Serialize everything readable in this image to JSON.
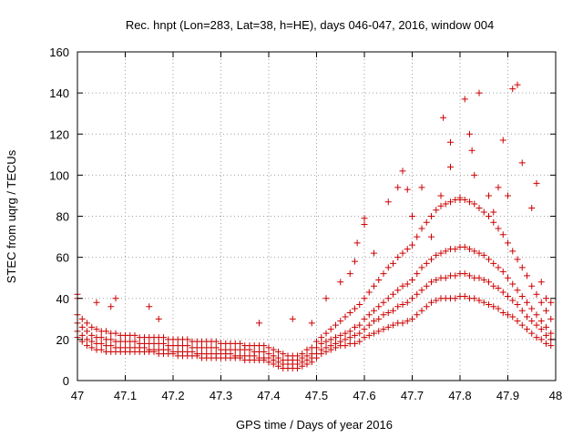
{
  "chart_data": {
    "type": "scatter",
    "title": "Rec. hnpt (Lon=283, Lat=38, h=HE), days 046-047, 2016, window 004",
    "xlabel": "GPS time / Days of year 2016",
    "ylabel": "STEC from uqrg / TECUs",
    "xlim": [
      47,
      48
    ],
    "ylim": [
      0,
      160
    ],
    "xticks": [
      47,
      47.1,
      47.2,
      47.3,
      47.4,
      47.5,
      47.6,
      47.7,
      47.8,
      47.9,
      48
    ],
    "xtick_labels": [
      "47",
      "47.1",
      "47.2",
      "47.3",
      "47.4",
      "47.5",
      "47.6",
      "47.7",
      "47.8",
      "47.9",
      "48"
    ],
    "yticks": [
      0,
      20,
      40,
      60,
      80,
      100,
      120,
      140,
      160
    ],
    "ytick_labels": [
      "0",
      "20",
      "40",
      "60",
      "80",
      "100",
      "120",
      "140",
      "160"
    ],
    "grid": true,
    "marker": "plus",
    "color": "#cc0000",
    "series": [
      {
        "x": [
          47.0,
          47.01,
          47.02,
          47.03,
          47.04,
          47.05,
          47.06,
          47.07,
          47.08,
          47.09,
          47.1,
          47.11,
          47.12,
          47.13,
          47.14,
          47.15,
          47.16,
          47.17,
          47.18,
          47.19,
          47.2,
          47.21,
          47.22,
          47.23,
          47.24,
          47.25,
          47.26,
          47.27,
          47.28,
          47.29,
          47.3,
          47.31,
          47.32,
          47.33,
          47.34,
          47.35,
          47.36,
          47.37,
          47.38,
          47.39,
          47.4,
          47.41,
          47.42,
          47.43,
          47.44,
          47.45,
          47.46,
          47.47,
          47.48,
          47.49,
          47.5,
          47.51,
          47.52,
          47.53,
          47.54,
          47.55,
          47.56,
          47.57,
          47.58,
          47.59,
          47.6,
          47.61,
          47.62,
          47.63,
          47.64,
          47.65,
          47.66,
          47.67,
          47.68,
          47.69,
          47.7,
          47.71,
          47.72,
          47.73,
          47.74,
          47.75,
          47.76,
          47.77,
          47.78,
          47.79,
          47.8,
          47.81,
          47.82,
          47.83,
          47.84,
          47.85,
          47.86,
          47.87,
          47.88,
          47.89,
          47.9,
          47.91,
          47.92,
          47.93,
          47.94,
          47.95,
          47.96,
          47.97,
          47.98,
          47.99
        ],
        "y": [
          21,
          19,
          17,
          16,
          15,
          15,
          14,
          14,
          14,
          14,
          14,
          14,
          14,
          14,
          14,
          14,
          14,
          13,
          13,
          13,
          13,
          12,
          12,
          12,
          12,
          12,
          11,
          11,
          11,
          11,
          11,
          11,
          11,
          11,
          11,
          10,
          10,
          10,
          10,
          10,
          9,
          8,
          7,
          6,
          6,
          6,
          6,
          7,
          8,
          9,
          11,
          13,
          14,
          15,
          16,
          17,
          17,
          18,
          18,
          19,
          21,
          22,
          23,
          24,
          25,
          26,
          27,
          28,
          28,
          29,
          30,
          32,
          34,
          36,
          38,
          39,
          40,
          40,
          40,
          40,
          41,
          41,
          40,
          40,
          39,
          38,
          37,
          36,
          35,
          33,
          32,
          31,
          29,
          27,
          25,
          23,
          21,
          20,
          18,
          17
        ]
      },
      {
        "x": [
          47.0,
          47.01,
          47.02,
          47.03,
          47.04,
          47.05,
          47.06,
          47.07,
          47.08,
          47.09,
          47.1,
          47.11,
          47.12,
          47.13,
          47.14,
          47.15,
          47.16,
          47.17,
          47.18,
          47.19,
          47.2,
          47.21,
          47.22,
          47.23,
          47.24,
          47.25,
          47.26,
          47.27,
          47.28,
          47.29,
          47.3,
          47.31,
          47.32,
          47.33,
          47.34,
          47.35,
          47.36,
          47.37,
          47.38,
          47.39,
          47.4,
          47.41,
          47.42,
          47.43,
          47.44,
          47.45,
          47.46,
          47.47,
          47.48,
          47.49,
          47.5,
          47.51,
          47.52,
          47.53,
          47.54,
          47.55,
          47.56,
          47.57,
          47.58,
          47.59,
          47.6,
          47.61,
          47.62,
          47.63,
          47.64,
          47.65,
          47.66,
          47.67,
          47.68,
          47.69,
          47.7,
          47.71,
          47.72,
          47.73,
          47.74,
          47.75,
          47.76,
          47.77,
          47.78,
          47.79,
          47.8,
          47.81,
          47.82,
          47.83,
          47.84,
          47.85,
          47.86,
          47.87,
          47.88,
          47.89,
          47.9,
          47.91,
          47.92,
          47.93,
          47.94,
          47.95,
          47.96,
          47.97,
          47.98,
          47.99
        ],
        "y": [
          24,
          22,
          20,
          19,
          18,
          18,
          17,
          17,
          16,
          16,
          16,
          16,
          16,
          16,
          16,
          15,
          15,
          15,
          15,
          15,
          14,
          14,
          14,
          14,
          14,
          13,
          13,
          13,
          13,
          13,
          13,
          13,
          13,
          12,
          12,
          12,
          12,
          12,
          11,
          11,
          11,
          10,
          9,
          8,
          8,
          8,
          8,
          9,
          10,
          11,
          13,
          15,
          16,
          17,
          18,
          19,
          20,
          21,
          22,
          23,
          25,
          27,
          29,
          30,
          32,
          33,
          34,
          36,
          37,
          38,
          40,
          42,
          44,
          46,
          48,
          49,
          50,
          50,
          51,
          51,
          52,
          52,
          51,
          50,
          50,
          49,
          48,
          46,
          45,
          43,
          41,
          39,
          37,
          34,
          31,
          29,
          27,
          25,
          22,
          20
        ]
      },
      {
        "x": [
          47.0,
          47.01,
          47.02,
          47.03,
          47.04,
          47.05,
          47.06,
          47.07,
          47.08,
          47.09,
          47.1,
          47.11,
          47.12,
          47.13,
          47.14,
          47.15,
          47.16,
          47.17,
          47.18,
          47.19,
          47.2,
          47.21,
          47.22,
          47.23,
          47.24,
          47.25,
          47.26,
          47.27,
          47.28,
          47.29,
          47.3,
          47.31,
          47.32,
          47.33,
          47.34,
          47.35,
          47.36,
          47.37,
          47.38,
          47.39,
          47.4,
          47.41,
          47.42,
          47.43,
          47.44,
          47.45,
          47.46,
          47.47,
          47.48,
          47.49,
          47.5,
          47.51,
          47.52,
          47.53,
          47.54,
          47.55,
          47.56,
          47.57,
          47.58,
          47.59,
          47.6,
          47.61,
          47.62,
          47.63,
          47.64,
          47.65,
          47.66,
          47.67,
          47.68,
          47.69,
          47.7,
          47.71,
          47.72,
          47.73,
          47.74,
          47.75,
          47.76,
          47.77,
          47.78,
          47.79,
          47.8,
          47.81,
          47.82,
          47.83,
          47.84,
          47.85,
          47.86,
          47.87,
          47.88,
          47.89,
          47.9,
          47.91,
          47.92,
          47.93,
          47.94,
          47.95,
          47.96,
          47.97,
          47.98,
          47.99
        ],
        "y": [
          28,
          26,
          24,
          22,
          21,
          21,
          20,
          20,
          19,
          19,
          19,
          19,
          19,
          18,
          18,
          18,
          18,
          18,
          18,
          17,
          17,
          17,
          17,
          17,
          16,
          16,
          16,
          16,
          16,
          16,
          15,
          15,
          15,
          15,
          15,
          15,
          15,
          14,
          14,
          14,
          13,
          12,
          11,
          10,
          10,
          10,
          10,
          11,
          12,
          13,
          16,
          18,
          19,
          20,
          21,
          22,
          23,
          24,
          26,
          27,
          30,
          32,
          34,
          36,
          38,
          40,
          42,
          44,
          46,
          47,
          49,
          52,
          55,
          57,
          59,
          61,
          62,
          63,
          64,
          64,
          65,
          65,
          64,
          63,
          62,
          61,
          59,
          57,
          55,
          53,
          50,
          47,
          44,
          41,
          38,
          35,
          32,
          29,
          26,
          23
        ]
      },
      {
        "x": [
          47.0,
          47.01,
          47.02,
          47.03,
          47.04,
          47.05,
          47.06,
          47.07,
          47.08,
          47.09,
          47.1,
          47.11,
          47.12,
          47.13,
          47.14,
          47.15,
          47.16,
          47.17,
          47.18,
          47.19,
          47.2,
          47.21,
          47.22,
          47.23,
          47.24,
          47.25,
          47.26,
          47.27,
          47.28,
          47.29,
          47.3,
          47.31,
          47.32,
          47.33,
          47.34,
          47.35,
          47.36,
          47.37,
          47.38,
          47.39,
          47.4,
          47.41,
          47.42,
          47.43,
          47.44,
          47.45,
          47.46,
          47.47,
          47.48,
          47.49,
          47.5,
          47.51,
          47.52,
          47.53,
          47.54,
          47.55,
          47.56,
          47.57,
          47.58,
          47.59,
          47.6,
          47.61,
          47.62,
          47.63,
          47.64,
          47.65,
          47.66,
          47.67,
          47.68,
          47.69,
          47.7,
          47.71,
          47.72,
          47.73,
          47.74,
          47.75,
          47.76,
          47.77,
          47.78,
          47.79,
          47.8,
          47.81,
          47.82,
          47.83,
          47.84,
          47.85,
          47.86,
          47.87,
          47.88,
          47.89,
          47.9,
          47.91,
          47.92,
          47.93,
          47.94,
          47.95,
          47.96,
          47.97,
          47.98,
          47.99
        ],
        "y": [
          32,
          30,
          28,
          26,
          25,
          24,
          24,
          23,
          23,
          22,
          22,
          22,
          22,
          21,
          21,
          21,
          21,
          21,
          21,
          20,
          20,
          20,
          20,
          20,
          19,
          19,
          19,
          19,
          19,
          19,
          18,
          18,
          18,
          18,
          18,
          17,
          17,
          17,
          17,
          17,
          16,
          15,
          14,
          13,
          12,
          12,
          12,
          13,
          15,
          16,
          19,
          21,
          23,
          25,
          27,
          29,
          31,
          33,
          35,
          37,
          40,
          43,
          46,
          49,
          52,
          55,
          57,
          60,
          62,
          64,
          66,
          70,
          74,
          77,
          80,
          83,
          85,
          86,
          87,
          88,
          89,
          88,
          87,
          86,
          84,
          82,
          80,
          77,
          74,
          71,
          67,
          63,
          59,
          55,
          51,
          46,
          42,
          38,
          34,
          30
        ]
      }
    ],
    "outliers": [
      {
        "x": 47.0,
        "y": 42
      },
      {
        "x": 47.0,
        "y": 40
      },
      {
        "x": 47.04,
        "y": 38
      },
      {
        "x": 47.08,
        "y": 40
      },
      {
        "x": 47.07,
        "y": 36
      },
      {
        "x": 47.15,
        "y": 36
      },
      {
        "x": 47.17,
        "y": 30
      },
      {
        "x": 47.38,
        "y": 28
      },
      {
        "x": 47.45,
        "y": 30
      },
      {
        "x": 47.49,
        "y": 28
      },
      {
        "x": 47.52,
        "y": 40
      },
      {
        "x": 47.55,
        "y": 48
      },
      {
        "x": 47.57,
        "y": 52
      },
      {
        "x": 47.58,
        "y": 58
      },
      {
        "x": 47.585,
        "y": 67
      },
      {
        "x": 47.6,
        "y": 76
      },
      {
        "x": 47.6,
        "y": 79
      },
      {
        "x": 47.62,
        "y": 62
      },
      {
        "x": 47.65,
        "y": 87
      },
      {
        "x": 47.67,
        "y": 94
      },
      {
        "x": 47.68,
        "y": 102
      },
      {
        "x": 47.69,
        "y": 93
      },
      {
        "x": 47.7,
        "y": 80
      },
      {
        "x": 47.72,
        "y": 94
      },
      {
        "x": 47.74,
        "y": 70
      },
      {
        "x": 47.76,
        "y": 90
      },
      {
        "x": 47.765,
        "y": 128
      },
      {
        "x": 47.78,
        "y": 116
      },
      {
        "x": 47.78,
        "y": 104
      },
      {
        "x": 47.8,
        "y": 88
      },
      {
        "x": 47.81,
        "y": 137
      },
      {
        "x": 47.82,
        "y": 120
      },
      {
        "x": 47.825,
        "y": 112
      },
      {
        "x": 47.83,
        "y": 100
      },
      {
        "x": 47.84,
        "y": 140
      },
      {
        "x": 47.86,
        "y": 90
      },
      {
        "x": 47.87,
        "y": 82
      },
      {
        "x": 47.88,
        "y": 94
      },
      {
        "x": 47.89,
        "y": 117
      },
      {
        "x": 47.9,
        "y": 90
      },
      {
        "x": 47.91,
        "y": 142
      },
      {
        "x": 47.92,
        "y": 144
      },
      {
        "x": 47.93,
        "y": 106
      },
      {
        "x": 47.95,
        "y": 84
      },
      {
        "x": 47.96,
        "y": 96
      },
      {
        "x": 47.97,
        "y": 48
      },
      {
        "x": 47.98,
        "y": 40
      },
      {
        "x": 47.99,
        "y": 38
      }
    ]
  }
}
